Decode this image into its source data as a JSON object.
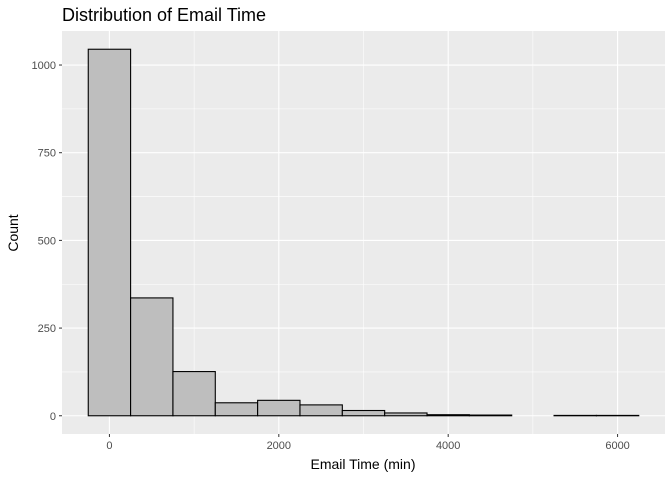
{
  "chart_data": {
    "type": "bar",
    "subtype": "histogram",
    "title": "Distribution of Email Time",
    "xlabel": "Email Time (min)",
    "ylabel": "Count",
    "bin_width": 500,
    "bins": [
      {
        "x0": -250,
        "x1": 250,
        "count": 1045
      },
      {
        "x0": 250,
        "x1": 750,
        "count": 336
      },
      {
        "x0": 750,
        "x1": 1250,
        "count": 126
      },
      {
        "x0": 1250,
        "x1": 1750,
        "count": 37
      },
      {
        "x0": 1750,
        "x1": 2250,
        "count": 44
      },
      {
        "x0": 2250,
        "x1": 2750,
        "count": 31
      },
      {
        "x0": 2750,
        "x1": 3250,
        "count": 15
      },
      {
        "x0": 3250,
        "x1": 3750,
        "count": 8
      },
      {
        "x0": 3750,
        "x1": 4250,
        "count": 3
      },
      {
        "x0": 4250,
        "x1": 4750,
        "count": 2
      },
      {
        "x0": 4750,
        "x1": 5250,
        "count": 0
      },
      {
        "x0": 5250,
        "x1": 5750,
        "count": 1
      },
      {
        "x0": 5750,
        "x1": 6250,
        "count": 1
      }
    ],
    "xlim": [
      -560,
      6560
    ],
    "ylim": [
      -52,
      1097
    ],
    "x_ticks": [
      0,
      2000,
      4000,
      6000
    ],
    "x_tick_labels": [
      "0",
      "2000",
      "4000",
      "6000"
    ],
    "y_ticks": [
      0,
      250,
      500,
      750,
      1000
    ],
    "y_tick_labels": [
      "0",
      "250",
      "500",
      "750",
      "1000"
    ],
    "grid": true,
    "colors": {
      "panel_background": "#ebebeb",
      "grid_major": "#ffffff",
      "bar_fill": "#bebebe",
      "bar_outline": "#000000",
      "tick_text": "#4d4d4d"
    }
  }
}
